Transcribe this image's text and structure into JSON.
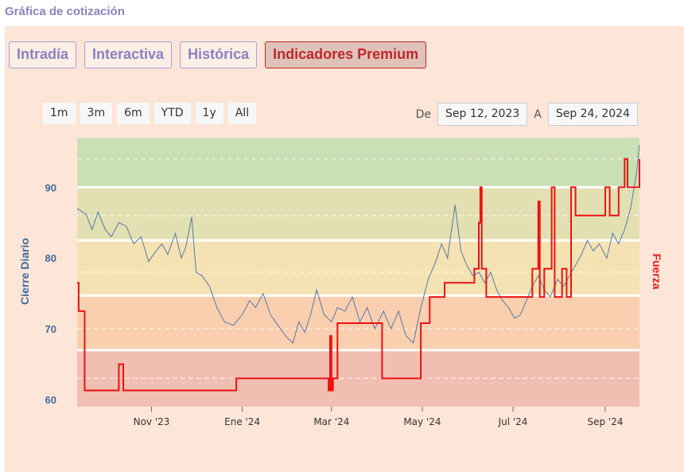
{
  "page_title": "Gráfica de cotización",
  "tabs": [
    {
      "label": "Intradía",
      "active": false
    },
    {
      "label": "Interactiva",
      "active": false
    },
    {
      "label": "Histórica",
      "active": false
    },
    {
      "label": "Indicadores Premium",
      "active": true
    }
  ],
  "range_buttons": [
    "1m",
    "3m",
    "6m",
    "YTD",
    "1y",
    "All"
  ],
  "date_range": {
    "from_label": "De",
    "from": "Sep 12, 2023",
    "to_label": "A",
    "to": "Sep 24, 2024"
  },
  "colors": {
    "price_line": "#5577aa",
    "strength_line": "#ee1111",
    "bands": [
      "#f1bfb2",
      "#f9cfaf",
      "#f4e2b2",
      "#e2e0b2",
      "#cadfb3"
    ]
  },
  "chart_data": {
    "type": "line",
    "xlabel": "",
    "ylabel": "Cierre Diario",
    "y2label": "Fuerza",
    "x_range": [
      "2023-09-12",
      "2024-09-24"
    ],
    "ylim": [
      59,
      97
    ],
    "yticks": [
      60,
      70,
      80,
      90
    ],
    "xticks": [
      {
        "date": "2023-11-01",
        "label": "Nov '23"
      },
      {
        "date": "2024-01-01",
        "label": "Ene '24"
      },
      {
        "date": "2024-03-01",
        "label": "Mar '24"
      },
      {
        "date": "2024-05-01",
        "label": "May '24"
      },
      {
        "date": "2024-07-01",
        "label": "Jul '24"
      },
      {
        "date": "2024-09-01",
        "label": "Sep '24"
      }
    ],
    "bands": [
      {
        "from": 59,
        "to": 67
      },
      {
        "from": 67,
        "to": 74.7
      },
      {
        "from": 74.7,
        "to": 82.5
      },
      {
        "from": 82.5,
        "to": 90
      },
      {
        "from": 90,
        "to": 97.5
      }
    ],
    "series": [
      {
        "name": "Cierre Diario",
        "axis": "left",
        "points": [
          [
            "2023-09-12",
            87.0
          ],
          [
            "2023-09-18",
            86.2
          ],
          [
            "2023-09-22",
            84.0
          ],
          [
            "2023-09-26",
            86.5
          ],
          [
            "2023-10-01",
            84.0
          ],
          [
            "2023-10-05",
            83.0
          ],
          [
            "2023-10-10",
            85.0
          ],
          [
            "2023-10-15",
            84.5
          ],
          [
            "2023-10-20",
            82.0
          ],
          [
            "2023-10-25",
            83.0
          ],
          [
            "2023-10-30",
            79.5
          ],
          [
            "2023-11-04",
            81.0
          ],
          [
            "2023-11-08",
            82.0
          ],
          [
            "2023-11-12",
            80.5
          ],
          [
            "2023-11-17",
            83.5
          ],
          [
            "2023-11-21",
            80.0
          ],
          [
            "2023-11-24",
            81.5
          ],
          [
            "2023-11-28",
            85.8
          ],
          [
            "2023-12-01",
            78.0
          ],
          [
            "2023-12-05",
            77.5
          ],
          [
            "2023-12-10",
            76.0
          ],
          [
            "2023-12-15",
            73.0
          ],
          [
            "2023-12-20",
            71.0
          ],
          [
            "2023-12-26",
            70.5
          ],
          [
            "2024-01-01",
            72.0
          ],
          [
            "2024-01-06",
            74.0
          ],
          [
            "2024-01-10",
            73.0
          ],
          [
            "2024-01-15",
            75.0
          ],
          [
            "2024-01-20",
            72.0
          ],
          [
            "2024-01-25",
            70.5
          ],
          [
            "2024-01-30",
            69.0
          ],
          [
            "2024-02-04",
            68.0
          ],
          [
            "2024-02-08",
            71.0
          ],
          [
            "2024-02-12",
            69.5
          ],
          [
            "2024-02-16",
            72.0
          ],
          [
            "2024-02-20",
            75.5
          ],
          [
            "2024-02-25",
            72.0
          ],
          [
            "2024-03-01",
            71.0
          ],
          [
            "2024-03-05",
            73.0
          ],
          [
            "2024-03-10",
            72.5
          ],
          [
            "2024-03-15",
            74.5
          ],
          [
            "2024-03-20",
            71.0
          ],
          [
            "2024-03-25",
            73.0
          ],
          [
            "2024-03-30",
            70.0
          ],
          [
            "2024-04-05",
            72.5
          ],
          [
            "2024-04-10",
            70.0
          ],
          [
            "2024-04-15",
            72.5
          ],
          [
            "2024-04-20",
            69.0
          ],
          [
            "2024-04-25",
            68.0
          ],
          [
            "2024-04-30",
            73.0
          ],
          [
            "2024-05-05",
            77.0
          ],
          [
            "2024-05-10",
            79.5
          ],
          [
            "2024-05-14",
            82.0
          ],
          [
            "2024-05-18",
            80.0
          ],
          [
            "2024-05-23",
            87.5
          ],
          [
            "2024-05-27",
            81.0
          ],
          [
            "2024-05-31",
            79.0
          ],
          [
            "2024-06-04",
            77.5
          ],
          [
            "2024-06-08",
            78.0
          ],
          [
            "2024-06-12",
            76.5
          ],
          [
            "2024-06-16",
            78.0
          ],
          [
            "2024-06-20",
            75.5
          ],
          [
            "2024-06-24",
            74.0
          ],
          [
            "2024-06-28",
            73.0
          ],
          [
            "2024-07-02",
            71.5
          ],
          [
            "2024-07-06",
            72.0
          ],
          [
            "2024-07-10",
            74.0
          ],
          [
            "2024-07-14",
            76.0
          ],
          [
            "2024-07-18",
            77.5
          ],
          [
            "2024-07-22",
            75.5
          ],
          [
            "2024-07-26",
            74.5
          ],
          [
            "2024-07-31",
            77.0
          ],
          [
            "2024-08-04",
            76.0
          ],
          [
            "2024-08-08",
            77.5
          ],
          [
            "2024-08-12",
            79.0
          ],
          [
            "2024-08-16",
            80.5
          ],
          [
            "2024-08-20",
            82.5
          ],
          [
            "2024-08-24",
            81.0
          ],
          [
            "2024-08-28",
            82.0
          ],
          [
            "2024-09-02",
            80.0
          ],
          [
            "2024-09-06",
            83.5
          ],
          [
            "2024-09-10",
            82.0
          ],
          [
            "2024-09-14",
            84.0
          ],
          [
            "2024-09-18",
            87.0
          ],
          [
            "2024-09-22",
            92.0
          ],
          [
            "2024-09-24",
            96.0
          ]
        ]
      },
      {
        "name": "Fuerza",
        "axis": "right",
        "step": true,
        "points": [
          [
            "2023-09-12",
            76.5
          ],
          [
            "2023-09-13",
            72.5
          ],
          [
            "2023-09-17",
            61.3
          ],
          [
            "2023-10-10",
            65.0
          ],
          [
            "2023-10-13",
            61.3
          ],
          [
            "2023-12-28",
            63.0
          ],
          [
            "2024-02-28",
            61.3
          ],
          [
            "2024-02-29",
            69.0
          ],
          [
            "2024-03-01",
            61.3
          ],
          [
            "2024-03-02",
            63.0
          ],
          [
            "2024-03-05",
            70.8
          ],
          [
            "2024-04-04",
            63.0
          ],
          [
            "2024-04-30",
            70.8
          ],
          [
            "2024-05-06",
            74.5
          ],
          [
            "2024-05-16",
            76.5
          ],
          [
            "2024-06-05",
            78.5
          ],
          [
            "2024-06-08",
            85.0
          ],
          [
            "2024-06-09",
            90.0
          ],
          [
            "2024-06-10",
            78.5
          ],
          [
            "2024-06-13",
            74.5
          ],
          [
            "2024-07-14",
            78.5
          ],
          [
            "2024-07-18",
            88.0
          ],
          [
            "2024-07-19",
            74.5
          ],
          [
            "2024-07-22",
            78.5
          ],
          [
            "2024-07-27",
            90.0
          ],
          [
            "2024-07-29",
            74.5
          ],
          [
            "2024-08-03",
            78.5
          ],
          [
            "2024-08-06",
            74.5
          ],
          [
            "2024-08-09",
            90.0
          ],
          [
            "2024-08-12",
            86.0
          ],
          [
            "2024-09-01",
            90.0
          ],
          [
            "2024-09-04",
            86.0
          ],
          [
            "2024-09-10",
            90.0
          ],
          [
            "2024-09-14",
            94.0
          ],
          [
            "2024-09-16",
            90.0
          ],
          [
            "2024-09-24",
            94.0
          ]
        ]
      }
    ]
  }
}
